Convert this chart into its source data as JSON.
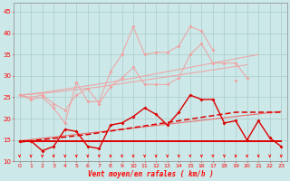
{
  "x": [
    0,
    1,
    2,
    3,
    4,
    5,
    6,
    7,
    8,
    9,
    10,
    11,
    12,
    13,
    14,
    15,
    16,
    17,
    18,
    19,
    20,
    21,
    22,
    23
  ],
  "line_rafales_spiky": [
    25.5,
    24.5,
    25.0,
    22.5,
    19.0,
    28.5,
    24.0,
    24.0,
    31.0,
    35.0,
    41.5,
    35.0,
    35.5,
    35.5,
    37.0,
    41.5,
    40.5,
    36.0,
    null,
    29.0,
    null,
    null,
    21.5,
    null
  ],
  "line_rafales_smooth": [
    25.5,
    25.0,
    25.5,
    23.5,
    22.0,
    25.5,
    27.0,
    23.5,
    27.5,
    29.5,
    32.0,
    28.0,
    28.0,
    28.0,
    29.5,
    35.0,
    37.5,
    33.0,
    33.0,
    33.0,
    29.5,
    null,
    null,
    null
  ],
  "line_trend_top": [
    25.5,
    25.8,
    26.1,
    26.5,
    26.9,
    27.3,
    27.7,
    28.1,
    28.5,
    29.0,
    29.5,
    30.0,
    30.5,
    31.0,
    31.5,
    32.0,
    32.5,
    33.0,
    33.5,
    34.0,
    34.5,
    35.0,
    null,
    null
  ],
  "line_trend_mid": [
    25.5,
    25.7,
    25.9,
    26.2,
    26.5,
    26.8,
    27.1,
    27.4,
    27.8,
    28.2,
    28.6,
    29.0,
    29.4,
    29.8,
    30.2,
    30.6,
    31.0,
    31.4,
    31.8,
    32.2,
    32.6,
    null,
    null,
    null
  ],
  "line_moyen_jagged": [
    14.8,
    14.8,
    12.5,
    13.5,
    17.5,
    17.0,
    13.5,
    13.0,
    18.5,
    19.0,
    20.5,
    22.5,
    21.0,
    18.5,
    21.5,
    25.5,
    24.5,
    24.5,
    19.0,
    19.5,
    15.0,
    19.5,
    15.5,
    13.5
  ],
  "line_moyen_trend": [
    14.5,
    14.8,
    15.1,
    15.4,
    15.7,
    16.0,
    16.3,
    16.7,
    17.1,
    17.5,
    17.9,
    18.3,
    18.7,
    19.1,
    19.5,
    19.9,
    20.3,
    20.7,
    21.1,
    21.5,
    21.5,
    21.5,
    21.5,
    21.5
  ],
  "line_flat": [
    14.8,
    14.8,
    14.8,
    14.8,
    14.8,
    14.8,
    14.8,
    14.8,
    14.8,
    14.8,
    14.8,
    14.8,
    14.8,
    14.8,
    14.8,
    14.8,
    14.8,
    14.8,
    14.8,
    14.8,
    14.8,
    14.8,
    14.8,
    14.8
  ],
  "line_moyen_trend2": [
    14.8,
    15.1,
    15.4,
    15.7,
    16.0,
    16.3,
    16.6,
    16.9,
    17.2,
    17.5,
    17.8,
    18.1,
    18.4,
    18.7,
    19.0,
    19.3,
    19.6,
    19.9,
    20.2,
    20.5,
    20.8,
    21.1,
    21.4,
    21.7
  ],
  "xlabel": "Vent moyen/en rafales ( km/h )",
  "ylim": [
    10,
    47
  ],
  "xlim": [
    -0.5,
    23.5
  ],
  "yticks": [
    10,
    15,
    20,
    25,
    30,
    35,
    40,
    45
  ],
  "xticks": [
    0,
    1,
    2,
    3,
    4,
    5,
    6,
    7,
    8,
    9,
    10,
    11,
    12,
    13,
    14,
    15,
    16,
    17,
    18,
    19,
    20,
    21,
    22,
    23
  ],
  "bg_color": "#cce8e8",
  "grid_color": "#aacccc",
  "color_light": "#f0a0a0",
  "color_mid": "#e87070",
  "color_dark": "#dd0000"
}
